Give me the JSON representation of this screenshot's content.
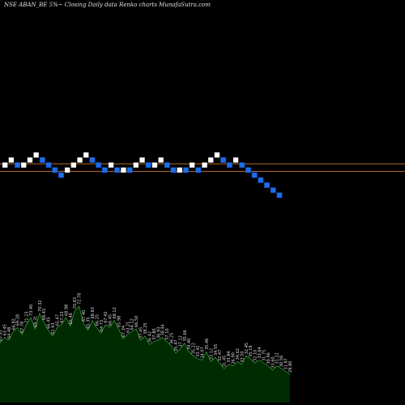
{
  "header": {
    "title": "NSE ABAN_BE 5%~  Closing Daily data  Renko  charts MunafaSutra.com"
  },
  "chart_data": [
    {
      "type": "renko",
      "title": "NSE ABAN_BE 5%~  Closing Daily data  Renko  charts MunafaSutra.com",
      "bricks": [
        {
          "dir": "up",
          "level": 2
        },
        {
          "dir": "up",
          "level": 3
        },
        {
          "dir": "down",
          "level": 2
        },
        {
          "dir": "up",
          "level": 2
        },
        {
          "dir": "up",
          "level": 3
        },
        {
          "dir": "up",
          "level": 4
        },
        {
          "dir": "down",
          "level": 3
        },
        {
          "dir": "down",
          "level": 2
        },
        {
          "dir": "down",
          "level": 1
        },
        {
          "dir": "down",
          "level": 0
        },
        {
          "dir": "up",
          "level": 1
        },
        {
          "dir": "up",
          "level": 2
        },
        {
          "dir": "up",
          "level": 3
        },
        {
          "dir": "up",
          "level": 4
        },
        {
          "dir": "down",
          "level": 3
        },
        {
          "dir": "down",
          "level": 2
        },
        {
          "dir": "down",
          "level": 1
        },
        {
          "dir": "up",
          "level": 2
        },
        {
          "dir": "down",
          "level": 1
        },
        {
          "dir": "up",
          "level": 1
        },
        {
          "dir": "down",
          "level": 1
        },
        {
          "dir": "up",
          "level": 2
        },
        {
          "dir": "up",
          "level": 3
        },
        {
          "dir": "down",
          "level": 2
        },
        {
          "dir": "up",
          "level": 2
        },
        {
          "dir": "up",
          "level": 3
        },
        {
          "dir": "down",
          "level": 2
        },
        {
          "dir": "down",
          "level": 1
        },
        {
          "dir": "up",
          "level": 1
        },
        {
          "dir": "down",
          "level": 1
        },
        {
          "dir": "up",
          "level": 2
        },
        {
          "dir": "down",
          "level": 1
        },
        {
          "dir": "up",
          "level": 2
        },
        {
          "dir": "up",
          "level": 3
        },
        {
          "dir": "up",
          "level": 4
        },
        {
          "dir": "down",
          "level": 3
        },
        {
          "dir": "down",
          "level": 2
        },
        {
          "dir": "up",
          "level": 3
        },
        {
          "dir": "down",
          "level": 2
        },
        {
          "dir": "down",
          "level": 1
        },
        {
          "dir": "down",
          "level": 0
        },
        {
          "dir": "down",
          "level": -1
        },
        {
          "dir": "down",
          "level": -2
        },
        {
          "dir": "down",
          "level": -3
        },
        {
          "dir": "down",
          "level": -4
        }
      ],
      "reference_lines": [
        2.25,
        0.75
      ],
      "colors": {
        "up": "#ffffff",
        "down": "#1e6fe6",
        "reference_line": "#b36a2a",
        "background": "#000000"
      }
    },
    {
      "type": "area",
      "colors": {
        "fill": "#002b00",
        "line": "#3fa83f",
        "labels": "#dddddd"
      },
      "values": [
        42,
        46,
        44,
        50,
        53,
        48,
        55,
        60,
        52,
        63,
        57,
        51,
        47,
        53,
        55,
        60,
        54,
        65,
        68,
        56,
        51,
        58,
        53,
        49,
        55,
        53,
        58,
        52,
        45,
        48,
        50,
        52,
        44,
        47,
        41,
        43,
        44,
        46,
        43,
        40,
        35,
        38,
        42,
        36,
        33,
        31,
        30,
        36,
        29,
        32,
        28,
        24,
        27,
        26,
        29,
        27,
        33,
        31,
        28,
        30,
        28,
        26,
        23,
        26,
        24,
        22,
        20
      ],
      "labels": [
        "65.93",
        "63.45",
        "64.48",
        "66.92",
        "69.28",
        "67.78",
        "71.23",
        "73.40",
        "69.31",
        "70.32",
        "68.43",
        "66.45",
        "61.63",
        "65.47",
        "67.23",
        "68.98",
        "66.46",
        "70.83",
        "72.78",
        "67.40",
        "65.35",
        "68.83",
        "66.25",
        "64.73",
        "67.42",
        "66.45",
        "68.12",
        "65.98",
        "67.34",
        "63.21",
        "64.12",
        "66.50",
        "37.45",
        "38.25",
        "36.42",
        "37.80",
        "36.93",
        "38.44",
        "37.10",
        "36.25",
        "35.47",
        "37.12",
        "35.66",
        "34.40",
        "35.22",
        "33.41",
        "34.07",
        "35.46",
        "33.12",
        "34.55",
        "32.47",
        "31.45",
        "33.84",
        "36.90",
        "34.62",
        "33.50",
        "32.45",
        "35.19",
        "32.10",
        "33.64",
        "31.75",
        "30.46",
        "33.60",
        "31.22",
        "30.56",
        "31.87",
        "29.80"
      ]
    }
  ]
}
